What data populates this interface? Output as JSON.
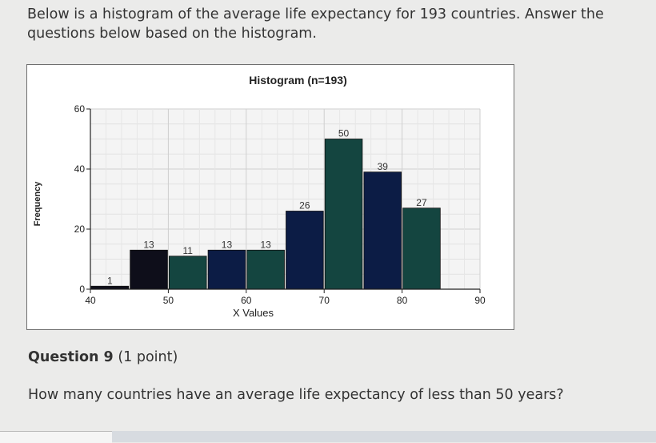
{
  "intro_text": "Below is a histogram of the average life expectancy for 193 countries.  Answer the questions below based on the histogram.",
  "question": {
    "title": "Question 9",
    "points": "(1 point)",
    "text": "How many countries have an average life expectancy of less than 50 years?"
  },
  "colors": {
    "bar_navy": "#0c1c45",
    "bar_teal": "#144540",
    "bar_black": "#0e0e1a"
  },
  "chart_data": {
    "type": "bar",
    "title": "Histogram (n=193)",
    "xlabel": "X Values",
    "ylabel": "Frequency",
    "xlim": [
      40,
      90
    ],
    "ylim": [
      0,
      60
    ],
    "grid": true,
    "bins": [
      {
        "start": 40,
        "end": 45,
        "value": 1,
        "color": "#0e0e1a"
      },
      {
        "start": 45,
        "end": 50,
        "value": 13,
        "color": "#0e0e1a"
      },
      {
        "start": 50,
        "end": 55,
        "value": 11,
        "color": "#144540"
      },
      {
        "start": 55,
        "end": 60,
        "value": 13,
        "color": "#0c1c45"
      },
      {
        "start": 60,
        "end": 65,
        "value": 13,
        "color": "#144540"
      },
      {
        "start": 65,
        "end": 70,
        "value": 26,
        "color": "#0c1c45"
      },
      {
        "start": 70,
        "end": 75,
        "value": 50,
        "color": "#144540"
      },
      {
        "start": 75,
        "end": 80,
        "value": 39,
        "color": "#0c1c45"
      },
      {
        "start": 80,
        "end": 85,
        "value": 27,
        "color": "#144540"
      }
    ],
    "x_ticks": [
      40,
      50,
      60,
      70,
      80,
      90
    ],
    "y_ticks": [
      0,
      20,
      40,
      60
    ]
  }
}
